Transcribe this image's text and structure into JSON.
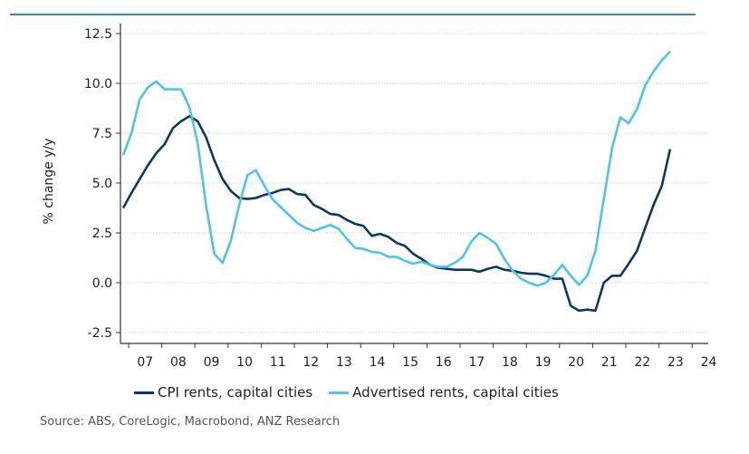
{
  "chart_data": {
    "type": "line",
    "title": "",
    "xlabel": "",
    "ylabel": "% change y/y",
    "ylim": [
      -2.5,
      12.5
    ],
    "yticks": [
      "12.5",
      "10.0",
      "7.5",
      "5.0",
      "2.5",
      "0.0",
      "-2.5"
    ],
    "xtick_labels": [
      "07",
      "08",
      "09",
      "10",
      "11",
      "12",
      "13",
      "14",
      "15",
      "16",
      "17",
      "18",
      "19",
      "20",
      "21",
      "22",
      "23",
      "24"
    ],
    "grid": "horizontal dotted",
    "legend_position": "bottom",
    "x_start_quarter": "2006-Q4",
    "frequency": "quarterly",
    "series": [
      {
        "name": "CPI rents, capital cities",
        "color": "#0d3a5c",
        "values": [
          3.75,
          4.5,
          5.2,
          5.9,
          6.5,
          6.95,
          7.75,
          8.1,
          8.35,
          8.1,
          7.3,
          6.15,
          5.2,
          4.6,
          4.25,
          4.2,
          4.25,
          4.4,
          4.5,
          4.65,
          4.7,
          4.45,
          4.4,
          3.9,
          3.7,
          3.45,
          3.4,
          3.15,
          2.95,
          2.85,
          2.35,
          2.45,
          2.3,
          2.0,
          1.85,
          1.45,
          1.2,
          0.9,
          0.75,
          0.7,
          0.65,
          0.65,
          0.65,
          0.55,
          0.7,
          0.8,
          0.65,
          0.6,
          0.5,
          0.45,
          0.45,
          0.35,
          0.2,
          0.2,
          -1.15,
          -1.4,
          -1.35,
          -1.4,
          0.0,
          0.35,
          0.35,
          0.95,
          1.6,
          2.75,
          3.9,
          4.85,
          6.7
        ]
      },
      {
        "name": "Advertised rents, capital cities",
        "color": "#4fc3e8",
        "values": [
          6.4,
          7.5,
          9.2,
          9.8,
          10.1,
          9.7,
          9.7,
          9.7,
          8.8,
          7.0,
          3.9,
          1.45,
          1.0,
          2.1,
          3.9,
          5.4,
          5.65,
          4.9,
          4.2,
          3.8,
          3.4,
          3.0,
          2.75,
          2.6,
          2.75,
          2.9,
          2.7,
          2.2,
          1.75,
          1.7,
          1.55,
          1.5,
          1.3,
          1.3,
          1.1,
          0.95,
          1.05,
          0.9,
          0.8,
          0.8,
          1.0,
          1.3,
          2.05,
          2.5,
          2.25,
          1.95,
          1.2,
          0.6,
          0.2,
          0.0,
          -0.15,
          0.0,
          0.4,
          0.9,
          0.35,
          -0.1,
          0.35,
          1.6,
          4.2,
          6.75,
          8.3,
          8.0,
          8.7,
          9.9,
          10.6,
          11.15,
          11.6
        ]
      }
    ]
  },
  "source": "Source: ABS, CoreLogic, Macrobond, ANZ Research",
  "colors": {
    "header_rule": "#2a8fd0",
    "grid": "#c8d6de"
  }
}
